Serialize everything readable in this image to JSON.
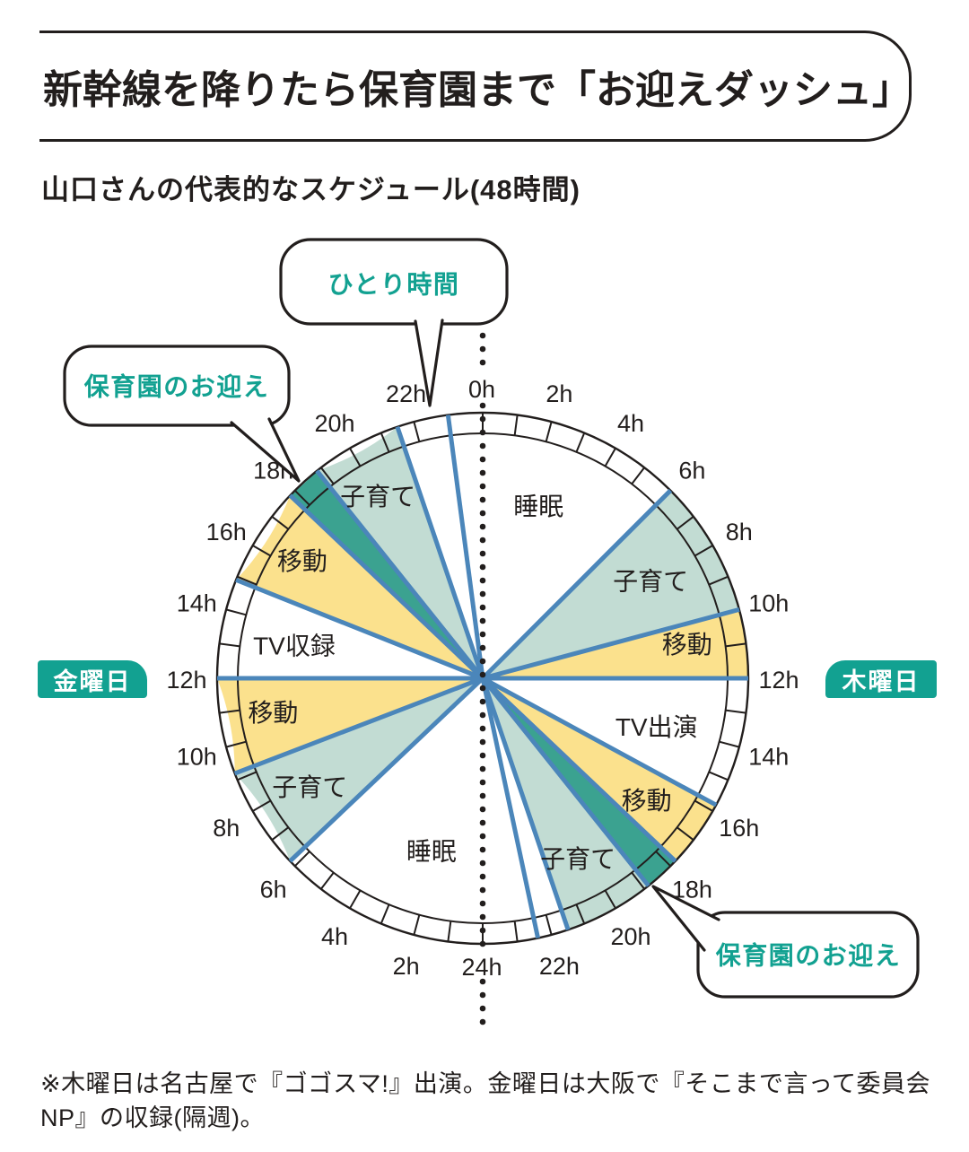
{
  "title": "新幹線を降りたら保育園まで「お迎えダッシュ」",
  "subtitle": "山口さんの代表的なスケジュール(48時間)",
  "footnote": "※木曜日は名古屋で『ゴゴスマ!』出演。金曜日は大阪で『そこまで言って委員会NP』の収録(隔週)。",
  "day_badges": {
    "left": "金曜日",
    "right": "木曜日"
  },
  "callouts": {
    "alone_time": "ひとり時間",
    "daycare_pickup_left": "保育園のお迎え",
    "daycare_pickup_right": "保育園のお迎え"
  },
  "colors": {
    "accent_teal": "#12a191",
    "segment_green_light": "#c2dcd3",
    "segment_green_dark": "#3ba290",
    "segment_yellow": "#fbe18d",
    "divider_blue": "#4b86ba",
    "ink": "#221e1d"
  },
  "chart_data": {
    "type": "pie",
    "title": "山口さんの代表的なスケジュール(48時間)",
    "total_hours": 48,
    "hours_per_side": 24,
    "degrees_per_hour": 7.5,
    "hour_labels": {
      "top": "0h",
      "bottom": "24h",
      "right": [
        "2h",
        "4h",
        "6h",
        "8h",
        "10h",
        "12h",
        "14h",
        "16h",
        "18h",
        "20h",
        "22h"
      ],
      "left": [
        "2h",
        "4h",
        "6h",
        "8h",
        "10h",
        "12h",
        "14h",
        "16h",
        "18h",
        "20h",
        "22h"
      ]
    },
    "sides": [
      {
        "day": "木曜日",
        "half": "right",
        "segments": [
          {
            "activity": "睡眠",
            "start": 0,
            "end": 6,
            "fill": "white",
            "label_h": 2.4,
            "label_r": 0.68
          },
          {
            "activity": "子育て",
            "start": 6,
            "end": 10,
            "fill": "green_light",
            "label_h": 8.0,
            "label_r": 0.73
          },
          {
            "activity": "移動",
            "start": 10,
            "end": 12,
            "fill": "yellow",
            "label_h": 10.75,
            "label_r": 0.78
          },
          {
            "activity": "TV出演",
            "start": 12,
            "end": 15.8,
            "fill": "white",
            "label_h": 14.1,
            "label_r": 0.68
          },
          {
            "activity": "移動",
            "start": 15.8,
            "end": 17.8,
            "fill": "yellow",
            "label_h": 16.9,
            "label_r": 0.77
          },
          {
            "activity": "保育園のお迎え",
            "start": 17.8,
            "end": 18.85,
            "fill": "green_dark"
          },
          {
            "activity": "子育て",
            "start": 18.85,
            "end": 21.5,
            "fill": "green_light",
            "label_h": 20.3,
            "label_r": 0.77
          },
          {
            "activity": "ひとり時間",
            "start": 21.5,
            "end": 22.4,
            "fill": "white"
          },
          {
            "activity": "睡眠",
            "start": 22.4,
            "end": 24,
            "fill": "white"
          }
        ]
      },
      {
        "day": "金曜日",
        "half": "left",
        "segments": [
          {
            "activity": "睡眠",
            "start": 0,
            "end": 6.2,
            "fill": "white",
            "label_h": 2.2,
            "label_r": 0.68
          },
          {
            "activity": "子育て",
            "start": 6.2,
            "end": 9.2,
            "fill": "green_light",
            "label_h": 7.7,
            "label_r": 0.77
          },
          {
            "activity": "移動",
            "start": 9.2,
            "end": 12,
            "fill": "yellow",
            "label_h": 10.75,
            "label_r": 0.8
          },
          {
            "activity": "TV収録",
            "start": 12,
            "end": 14.9,
            "fill": "white",
            "label_h": 13.3,
            "label_r": 0.72
          },
          {
            "activity": "移動",
            "start": 14.9,
            "end": 17.8,
            "fill": "yellow",
            "label_h": 16.4,
            "label_r": 0.81
          },
          {
            "activity": "保育園のお迎え",
            "start": 17.8,
            "end": 18.85,
            "fill": "green_dark"
          },
          {
            "activity": "子育て",
            "start": 18.85,
            "end": 21.5,
            "fill": "green_light",
            "label_h": 20.0,
            "label_r": 0.79
          },
          {
            "activity": "ひとり時間",
            "start": 21.5,
            "end": 23.0,
            "fill": "white"
          },
          {
            "activity": "睡眠",
            "start": 23.0,
            "end": 24,
            "fill": "white"
          }
        ]
      }
    ]
  }
}
